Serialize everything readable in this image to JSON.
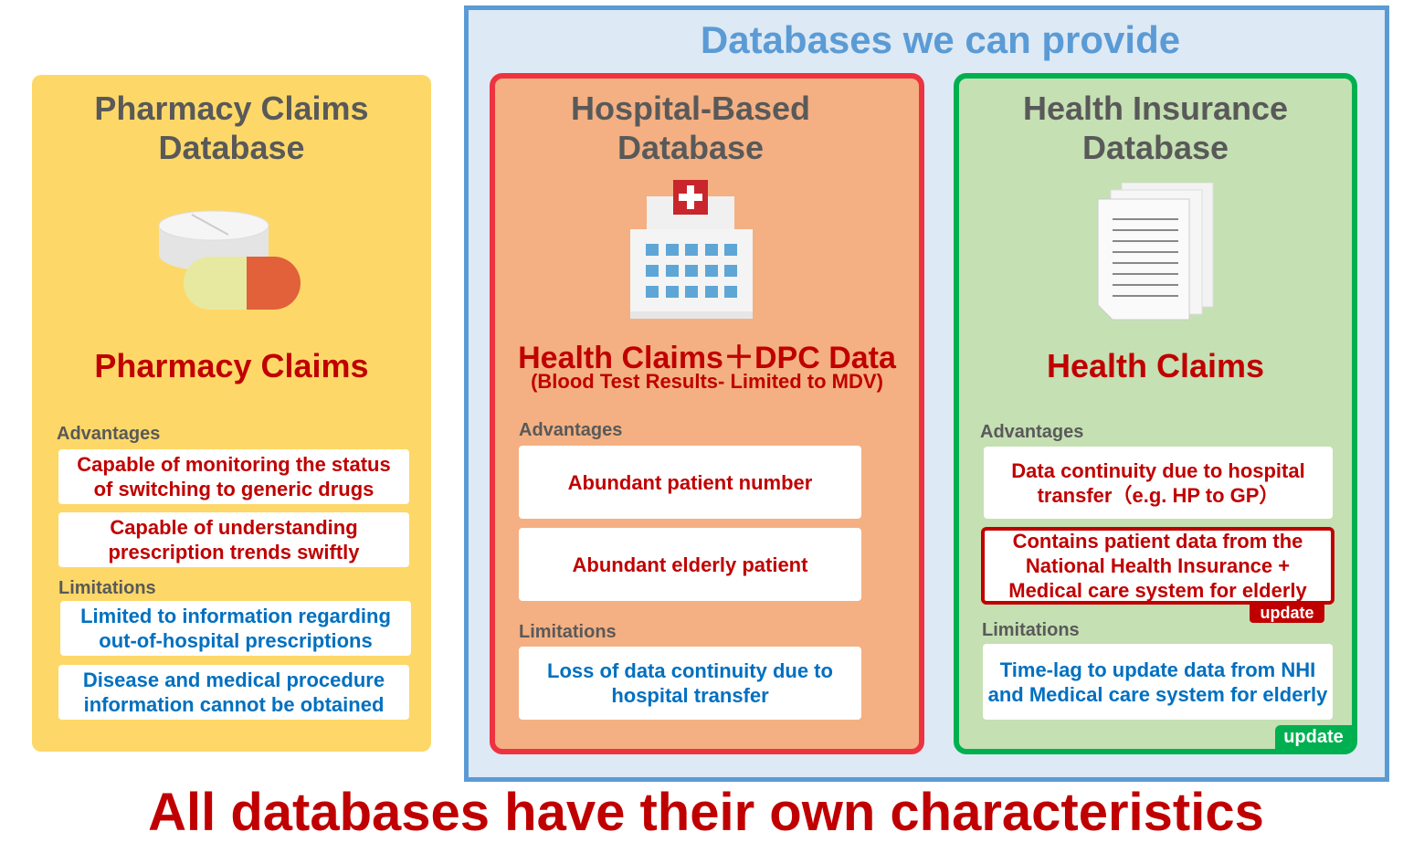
{
  "header": {
    "title": "Databases we can provide"
  },
  "pharmacy": {
    "title_line1": "Pharmacy Claims",
    "title_line2": "Database",
    "icon": "pills-icon",
    "data_type": "Pharmacy Claims",
    "advantages_label": "Advantages",
    "advantages": [
      "Capable of monitoring the status of switching to generic drugs",
      "Capable of understanding prescription trends swiftly"
    ],
    "limitations_label": "Limitations",
    "limitations": [
      "Limited to information regarding out-of-hospital prescriptions",
      "Disease and medical procedure information cannot be obtained"
    ],
    "color": "#fdd868"
  },
  "hospital": {
    "title_line1": "Hospital-Based",
    "title_line2": "Database",
    "icon": "hospital-icon",
    "data_type": "Health Claims＋DPC Data",
    "data_note": "(Blood Test Results- Limited to MDV)",
    "advantages_label": "Advantages",
    "advantages": [
      "Abundant patient number",
      "Abundant elderly patient"
    ],
    "limitations_label": "Limitations",
    "limitations": [
      "Loss of data continuity due to hospital transfer"
    ],
    "color": "#f4b082",
    "border_color": "#ee3340"
  },
  "insurance": {
    "title_line1": "Health Insurance",
    "title_line2": "Database",
    "icon": "documents-icon",
    "data_type": "Health Claims",
    "advantages_label": "Advantages",
    "advantages": [
      "Data continuity due to hospital transfer（e.g. HP to GP）",
      "Contains patient data from the National Health Insurance + Medical care system for elderly"
    ],
    "advantage_update_tag": "update",
    "limitations_label": "Limitations",
    "limitations": [
      "Time-lag to update data from NHI and Medical care system for elderly"
    ],
    "panel_update_tag": "update",
    "color": "#c5e0b3",
    "border_color": "#00b050"
  },
  "footer": {
    "conclusion": "All databases have their own characteristics"
  }
}
